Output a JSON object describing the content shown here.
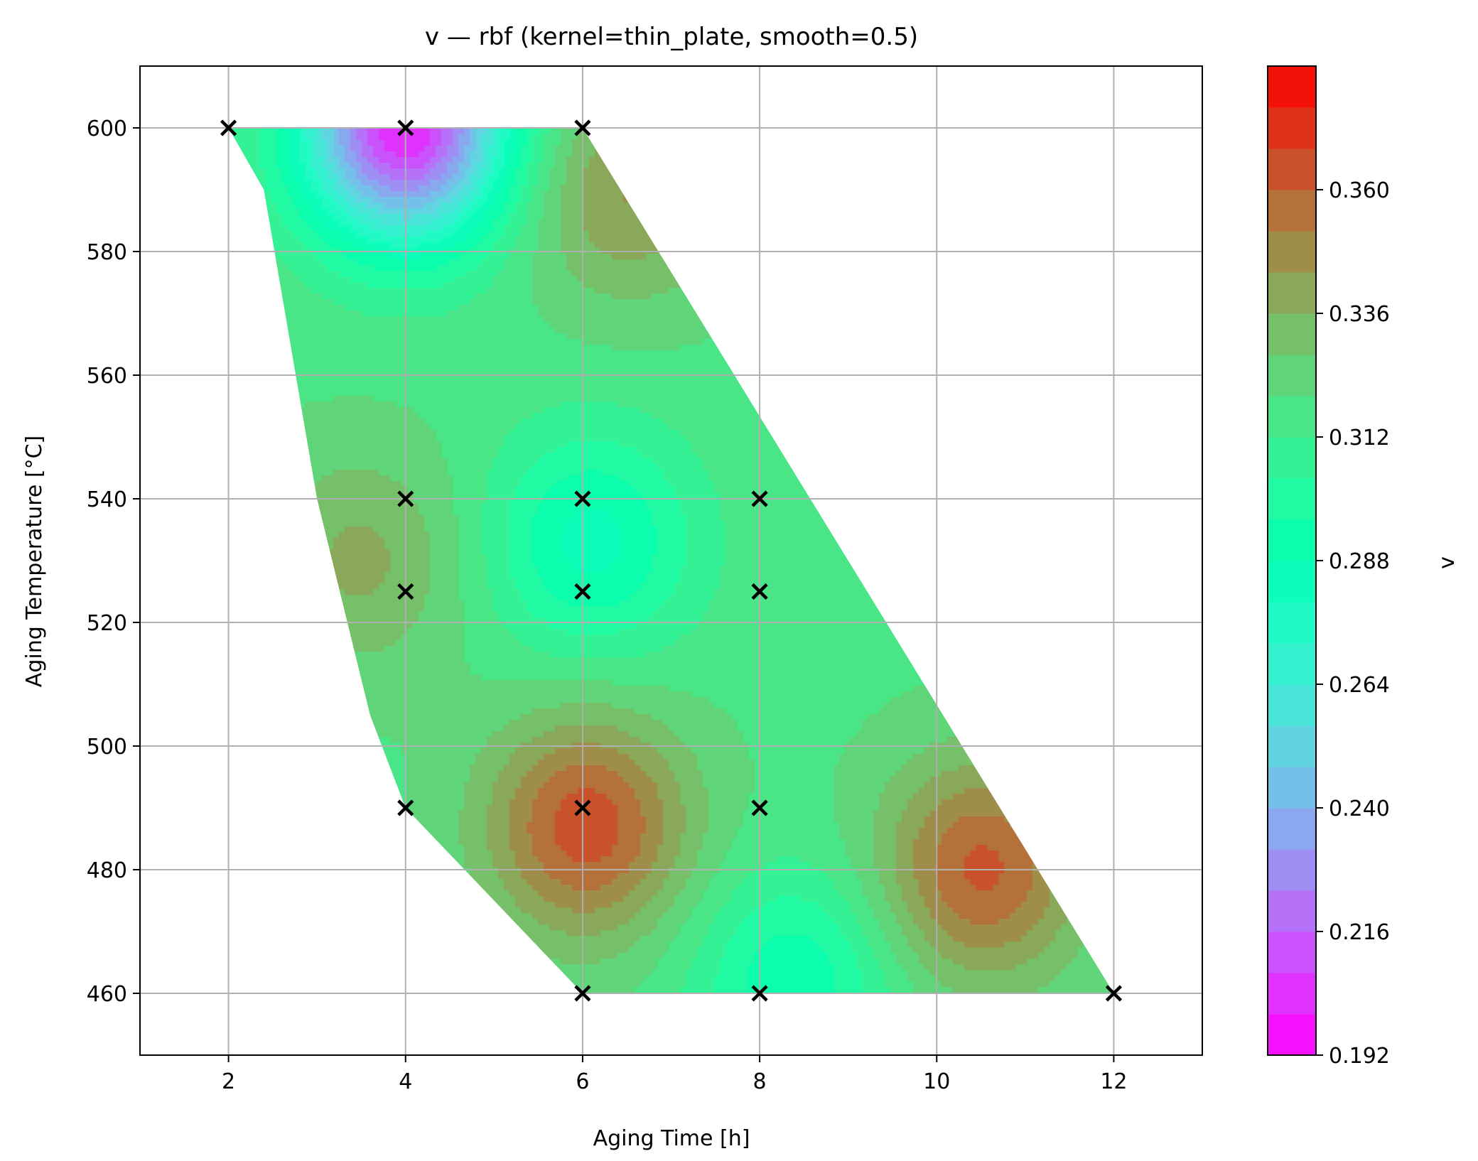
{
  "chart_data": {
    "type": "contour",
    "title": "v — rbf (kernel=thin_plate, smooth=0.5)",
    "xlabel": "Aging Time [h]",
    "ylabel": "Aging Temperature [°C]",
    "colorbar_label": "v",
    "xlim": [
      1,
      13
    ],
    "ylim": [
      450,
      610
    ],
    "xticks": [
      2,
      4,
      6,
      8,
      10,
      12
    ],
    "yticks": [
      460,
      480,
      500,
      520,
      540,
      560,
      580,
      600
    ],
    "colorbar_range": [
      0.192,
      0.384
    ],
    "colorbar_ticks": [
      0.192,
      0.216,
      0.24,
      0.264,
      0.288,
      0.312,
      0.336,
      0.36
    ],
    "colormap": "rainbow",
    "grid": true,
    "region_polygon": [
      [
        2.0,
        600
      ],
      [
        6.0,
        600
      ],
      [
        12.0,
        460
      ],
      [
        6.0,
        460
      ],
      [
        4.0,
        490
      ],
      [
        3.6,
        505
      ],
      [
        3.0,
        540
      ],
      [
        2.4,
        590
      ]
    ],
    "extrema": [
      {
        "x": 4.0,
        "y": 600,
        "value": 0.2
      },
      {
        "x": 6.05,
        "y": 487,
        "value": 0.365
      },
      {
        "x": 6.1,
        "y": 533,
        "value": 0.285
      },
      {
        "x": 8.4,
        "y": 462,
        "value": 0.29
      },
      {
        "x": 3.5,
        "y": 530,
        "value": 0.338
      },
      {
        "x": 10.5,
        "y": 480,
        "value": 0.362
      },
      {
        "x": 6.5,
        "y": 590,
        "value": 0.345
      }
    ],
    "points": [
      {
        "x": 2,
        "y": 600
      },
      {
        "x": 4,
        "y": 600
      },
      {
        "x": 6,
        "y": 600
      },
      {
        "x": 4,
        "y": 540
      },
      {
        "x": 6,
        "y": 540
      },
      {
        "x": 8,
        "y": 540
      },
      {
        "x": 4,
        "y": 525
      },
      {
        "x": 6,
        "y": 525
      },
      {
        "x": 8,
        "y": 525
      },
      {
        "x": 4,
        "y": 490
      },
      {
        "x": 6,
        "y": 490
      },
      {
        "x": 8,
        "y": 490
      },
      {
        "x": 6,
        "y": 460
      },
      {
        "x": 8,
        "y": 460
      },
      {
        "x": 12,
        "y": 460
      }
    ]
  }
}
